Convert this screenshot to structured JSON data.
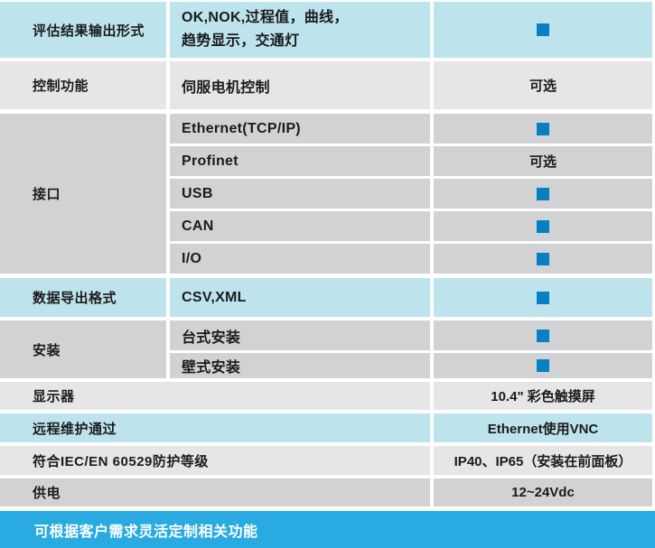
{
  "table": {
    "rows": {
      "eval": {
        "label": "评估结果输出形式",
        "line1": "OK,NOK,过程值，曲线，",
        "line2": "趋势显示，交通灯"
      },
      "control": {
        "label": "控制功能",
        "sub": "伺服电机控制",
        "value": "可选"
      },
      "interface": {
        "label": "接口",
        "items": [
          {
            "name": "Ethernet(TCP/IP)"
          },
          {
            "name": "Profinet",
            "value": "可选"
          },
          {
            "name": "USB"
          },
          {
            "name": "CAN"
          },
          {
            "name": "I/O"
          }
        ]
      },
      "export": {
        "label": "数据导出格式",
        "sub": "CSV,XML"
      },
      "install": {
        "label": "安装",
        "items": [
          {
            "name": "台式安装"
          },
          {
            "name": "壁式安装"
          }
        ]
      },
      "display": {
        "label": "显示器",
        "value": "10.4\" 彩色触摸屏"
      },
      "remote": {
        "label": "远程维护通过",
        "value": "Ethernet使用VNC"
      },
      "protection": {
        "label": "符合IEC/EN 60529防护等级",
        "value": "IP40、IP65（安装在前面板）"
      },
      "power": {
        "label": "供电",
        "value": "12~24Vdc"
      }
    },
    "footer": {
      "note": "可根据客户需求灵活定制相关功能"
    }
  },
  "colors": {
    "row_blue": "#bde3ed",
    "row_light_gray": "#e6e6e6",
    "row_dark_gray": "#d1d2d3",
    "indicator_square": "#0680c3",
    "footer_bar": "#29abe2"
  }
}
